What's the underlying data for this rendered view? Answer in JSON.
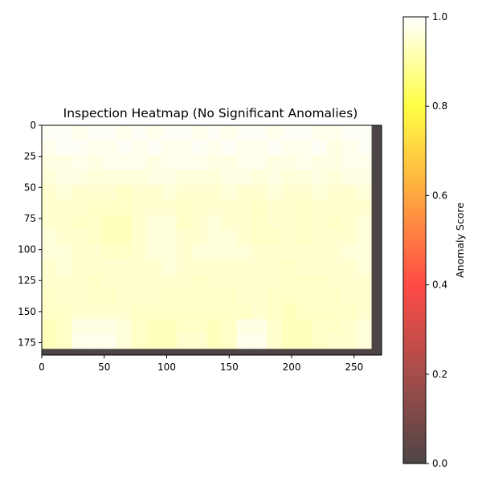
{
  "chart_data": {
    "type": "heatmap",
    "title": "Inspection Heatmap (No Significant Anomalies)",
    "xlabel": "",
    "ylabel": "",
    "x_ticks": [
      0,
      50,
      100,
      150,
      200,
      250
    ],
    "y_ticks": [
      0,
      25,
      50,
      75,
      100,
      125,
      150,
      175
    ],
    "xlim": [
      0,
      272
    ],
    "ylim": [
      185,
      0
    ],
    "grid": false,
    "colorbar": {
      "label": "Anomaly Score",
      "range": [
        0.0,
        1.0
      ],
      "ticks": [
        0.0,
        0.2,
        0.4,
        0.6,
        0.8,
        1.0
      ],
      "tick_labels": [
        "0.0",
        "0.2",
        "0.4",
        "0.6",
        "0.8",
        "1.0"
      ],
      "colormap": "hot",
      "stops": [
        {
          "v": 0.0,
          "color": "#4d4545"
        },
        {
          "v": 0.2,
          "color": "#a54d4a"
        },
        {
          "v": 0.4,
          "color": "#ff4a45"
        },
        {
          "v": 0.6,
          "color": "#ffa740"
        },
        {
          "v": 0.8,
          "color": "#ffff44"
        },
        {
          "v": 1.0,
          "color": "#ffffff"
        }
      ]
    },
    "cell_size": 12,
    "grid_rows": 16,
    "grid_cols": 23,
    "values": [
      [
        0.99,
        0.99,
        0.98,
        0.99,
        0.99,
        0.98,
        0.99,
        0.98,
        0.99,
        0.99,
        0.98,
        0.99,
        0.98,
        0.99,
        0.99,
        0.98,
        0.99,
        0.99,
        0.98,
        0.98,
        0.99,
        0.99,
        0.0
      ],
      [
        0.98,
        0.99,
        0.99,
        0.98,
        0.98,
        0.99,
        0.98,
        0.99,
        0.98,
        0.98,
        0.99,
        0.98,
        0.99,
        0.98,
        0.98,
        0.99,
        0.98,
        0.98,
        0.99,
        0.97,
        0.98,
        0.99,
        0.0
      ],
      [
        0.97,
        0.97,
        0.98,
        0.97,
        0.98,
        0.98,
        0.98,
        0.97,
        0.98,
        0.98,
        0.98,
        0.97,
        0.97,
        0.98,
        0.98,
        0.97,
        0.97,
        0.98,
        0.97,
        0.97,
        0.98,
        0.98,
        0.0
      ],
      [
        0.96,
        0.97,
        0.97,
        0.96,
        0.96,
        0.96,
        0.96,
        0.97,
        0.97,
        0.96,
        0.96,
        0.96,
        0.97,
        0.97,
        0.96,
        0.97,
        0.96,
        0.96,
        0.97,
        0.96,
        0.97,
        0.97,
        0.0
      ],
      [
        0.95,
        0.96,
        0.95,
        0.95,
        0.95,
        0.94,
        0.95,
        0.95,
        0.96,
        0.95,
        0.95,
        0.95,
        0.96,
        0.95,
        0.95,
        0.96,
        0.95,
        0.95,
        0.96,
        0.95,
        0.95,
        0.96,
        0.0
      ],
      [
        0.95,
        0.95,
        0.95,
        0.94,
        0.94,
        0.94,
        0.95,
        0.95,
        0.95,
        0.94,
        0.95,
        0.95,
        0.95,
        0.95,
        0.94,
        0.95,
        0.95,
        0.94,
        0.95,
        0.95,
        0.95,
        0.95,
        0.0
      ],
      [
        0.95,
        0.95,
        0.94,
        0.94,
        0.93,
        0.93,
        0.95,
        0.96,
        0.96,
        0.94,
        0.95,
        0.96,
        0.95,
        0.95,
        0.94,
        0.95,
        0.95,
        0.94,
        0.95,
        0.94,
        0.95,
        0.96,
        0.0
      ],
      [
        0.96,
        0.95,
        0.95,
        0.94,
        0.93,
        0.93,
        0.95,
        0.96,
        0.96,
        0.95,
        0.95,
        0.96,
        0.96,
        0.95,
        0.94,
        0.94,
        0.95,
        0.94,
        0.95,
        0.95,
        0.95,
        0.96,
        0.0
      ],
      [
        0.96,
        0.96,
        0.95,
        0.95,
        0.94,
        0.94,
        0.95,
        0.96,
        0.96,
        0.95,
        0.96,
        0.96,
        0.96,
        0.96,
        0.95,
        0.95,
        0.95,
        0.95,
        0.95,
        0.95,
        0.96,
        0.96,
        0.0
      ],
      [
        0.95,
        0.96,
        0.95,
        0.95,
        0.95,
        0.95,
        0.95,
        0.95,
        0.96,
        0.95,
        0.95,
        0.95,
        0.95,
        0.95,
        0.95,
        0.95,
        0.94,
        0.95,
        0.95,
        0.95,
        0.95,
        0.96,
        0.0
      ],
      [
        0.95,
        0.95,
        0.95,
        0.94,
        0.95,
        0.95,
        0.95,
        0.95,
        0.95,
        0.95,
        0.94,
        0.95,
        0.95,
        0.95,
        0.95,
        0.95,
        0.94,
        0.94,
        0.94,
        0.95,
        0.95,
        0.95,
        0.0
      ],
      [
        0.94,
        0.95,
        0.95,
        0.94,
        0.94,
        0.95,
        0.95,
        0.95,
        0.94,
        0.94,
        0.94,
        0.94,
        0.94,
        0.95,
        0.95,
        0.94,
        0.94,
        0.94,
        0.94,
        0.94,
        0.95,
        0.95,
        0.0
      ],
      [
        0.94,
        0.94,
        0.95,
        0.95,
        0.95,
        0.95,
        0.94,
        0.94,
        0.94,
        0.94,
        0.94,
        0.94,
        0.94,
        0.94,
        0.95,
        0.94,
        0.93,
        0.94,
        0.94,
        0.94,
        0.94,
        0.95,
        0.0
      ],
      [
        0.93,
        0.94,
        0.97,
        0.97,
        0.97,
        0.96,
        0.94,
        0.93,
        0.93,
        0.94,
        0.94,
        0.93,
        0.94,
        0.97,
        0.97,
        0.95,
        0.93,
        0.93,
        0.94,
        0.94,
        0.95,
        0.96,
        0.0
      ],
      [
        0.93,
        0.94,
        0.98,
        0.98,
        0.98,
        0.96,
        0.94,
        0.93,
        0.93,
        0.95,
        0.95,
        0.93,
        0.94,
        0.98,
        0.98,
        0.95,
        0.93,
        0.93,
        0.94,
        0.95,
        0.95,
        0.96,
        0.0
      ],
      [
        0.0,
        0.0,
        0.0,
        0.0,
        0.0,
        0.0,
        0.0,
        0.0,
        0.0,
        0.0,
        0.0,
        0.0,
        0.0,
        0.0,
        0.0,
        0.0,
        0.0,
        0.0,
        0.0,
        0.0,
        0.0,
        0.0,
        0.0
      ]
    ]
  }
}
